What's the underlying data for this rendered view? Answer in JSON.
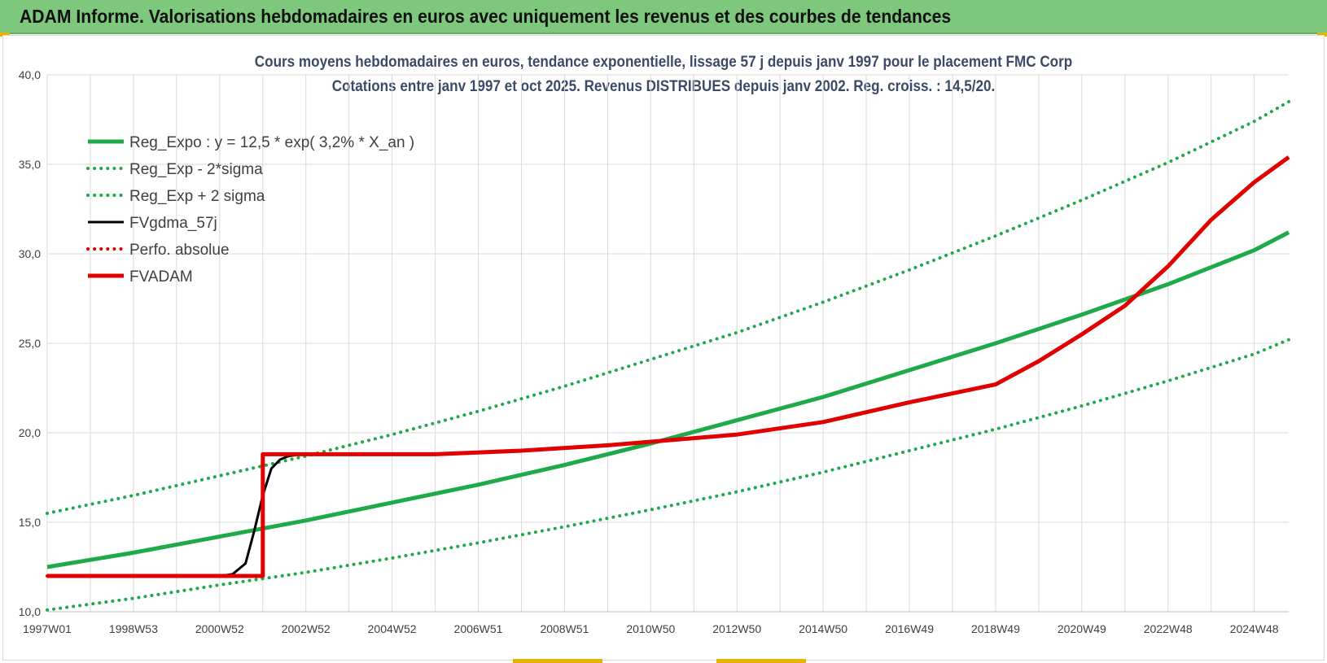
{
  "header": {
    "title": "ADAM Informe. Valorisations hebdomadaires en euros avec uniquement les revenus et des courbes de tendances"
  },
  "colors": {
    "header_bg": "#7ec87e",
    "green": "#1faa4a",
    "black": "#000000",
    "red": "#e00000",
    "grid": "#d9d9d9",
    "title_text": "#3b4a66"
  },
  "chart_data": {
    "type": "line",
    "title_line1": "Cours moyens hebdomadaires en euros, tendance exponentielle, lissage 57 j depuis janv 1997 pour le placement FMC Corp",
    "title_line2": "Cotations entre janv 1997 et oct 2025. Revenus DISTRIBUES depuis janv 2002. Reg. croiss. : 14,5/20.",
    "xlabel": "",
    "ylabel": "",
    "x_range": [
      1997.0,
      2025.8
    ],
    "ylim": [
      10,
      40
    ],
    "y_ticks": [
      10,
      15,
      20,
      25,
      30,
      35,
      40
    ],
    "y_tick_labels": [
      "10,0",
      "15,0",
      "20,0",
      "25,0",
      "30,0",
      "35,0",
      "40,0"
    ],
    "x_ticks": [
      {
        "label": "1997W01",
        "x": 1997.0
      },
      {
        "label": "1998W53",
        "x": 1999.0
      },
      {
        "label": "2000W52",
        "x": 2001.0
      },
      {
        "label": "2002W52",
        "x": 2003.0
      },
      {
        "label": "2004W52",
        "x": 2005.0
      },
      {
        "label": "2006W51",
        "x": 2007.0
      },
      {
        "label": "2008W51",
        "x": 2009.0
      },
      {
        "label": "2010W50",
        "x": 2011.0
      },
      {
        "label": "2012W50",
        "x": 2013.0
      },
      {
        "label": "2014W50",
        "x": 2015.0
      },
      {
        "label": "2016W49",
        "x": 2017.0
      },
      {
        "label": "2018W49",
        "x": 2019.0
      },
      {
        "label": "2020W49",
        "x": 2021.0
      },
      {
        "label": "2022W48",
        "x": 2023.0
      },
      {
        "label": "2024W48",
        "x": 2025.0
      }
    ],
    "grid": true,
    "legend_position": "top-left",
    "series": [
      {
        "name": "Reg_Expo : y = 12,5 * exp( 3,2% *  X_an )",
        "style": "solid-thick",
        "color": "#1faa4a",
        "x": [
          1997,
          1999,
          2001,
          2003,
          2005,
          2007,
          2009,
          2011,
          2013,
          2015,
          2017,
          2019,
          2021,
          2023,
          2025,
          2025.8
        ],
        "y": [
          12.5,
          13.3,
          14.2,
          15.1,
          16.1,
          17.1,
          18.2,
          19.4,
          20.7,
          22.0,
          23.5,
          25.0,
          26.6,
          28.3,
          30.2,
          31.2
        ]
      },
      {
        "name": "Reg_Exp - 2*sigma",
        "style": "dotted",
        "color": "#1faa4a",
        "x": [
          1997,
          1999,
          2001,
          2003,
          2005,
          2007,
          2009,
          2011,
          2013,
          2015,
          2017,
          2019,
          2021,
          2023,
          2025,
          2025.8
        ],
        "y": [
          10.1,
          10.75,
          11.5,
          12.2,
          13.0,
          13.85,
          14.75,
          15.7,
          16.7,
          17.8,
          19.0,
          20.2,
          21.5,
          22.9,
          24.4,
          25.2
        ]
      },
      {
        "name": "Reg_Exp + 2 sigma",
        "style": "dotted",
        "color": "#1faa4a",
        "x": [
          1997,
          1999,
          2001,
          2003,
          2005,
          2007,
          2009,
          2011,
          2013,
          2015,
          2017,
          2019,
          2021,
          2023,
          2025,
          2025.8
        ],
        "y": [
          15.5,
          16.5,
          17.6,
          18.7,
          19.9,
          21.2,
          22.6,
          24.1,
          25.6,
          27.3,
          29.1,
          31.0,
          33.0,
          35.1,
          37.4,
          38.5
        ]
      },
      {
        "name": "FVgdma_57j",
        "style": "solid",
        "color": "#000000",
        "x": [
          1997,
          2001.0,
          2001.3,
          2001.6,
          2001.8,
          2002.0,
          2002.2,
          2002.4,
          2002.6,
          2002.9,
          2003.2,
          2006,
          2008,
          2010,
          2011,
          2013,
          2015,
          2017,
          2019,
          2020,
          2021,
          2022,
          2023,
          2024,
          2025,
          2025.8
        ],
        "y": [
          12.0,
          12.0,
          12.1,
          12.7,
          14.5,
          16.5,
          18.0,
          18.5,
          18.7,
          18.8,
          18.8,
          18.8,
          19.0,
          19.3,
          19.5,
          19.9,
          20.6,
          21.7,
          22.7,
          24.0,
          25.5,
          27.1,
          29.3,
          31.9,
          34.0,
          35.4
        ]
      },
      {
        "name": "Perfo. absolue",
        "style": "dotted",
        "color": "#e00000",
        "x": [
          1997,
          2002.0,
          2002.0,
          2006,
          2008,
          2010,
          2011,
          2013,
          2015,
          2017,
          2019,
          2020,
          2021,
          2022,
          2023,
          2024,
          2025,
          2025.8
        ],
        "y": [
          12.0,
          12.0,
          18.8,
          18.8,
          19.0,
          19.3,
          19.5,
          19.9,
          20.6,
          21.7,
          22.7,
          24.0,
          25.5,
          27.1,
          29.3,
          31.9,
          34.0,
          35.4
        ]
      },
      {
        "name": "FVADAM",
        "style": "solid-thick",
        "color": "#e00000",
        "x": [
          1997,
          2002.0,
          2002.0,
          2006,
          2008,
          2010,
          2011,
          2013,
          2015,
          2017,
          2019,
          2020,
          2021,
          2022,
          2023,
          2024,
          2025,
          2025.8
        ],
        "y": [
          12.0,
          12.0,
          18.8,
          18.8,
          19.0,
          19.3,
          19.5,
          19.9,
          20.6,
          21.7,
          22.7,
          24.0,
          25.5,
          27.1,
          29.3,
          31.9,
          34.0,
          35.4
        ]
      }
    ]
  }
}
